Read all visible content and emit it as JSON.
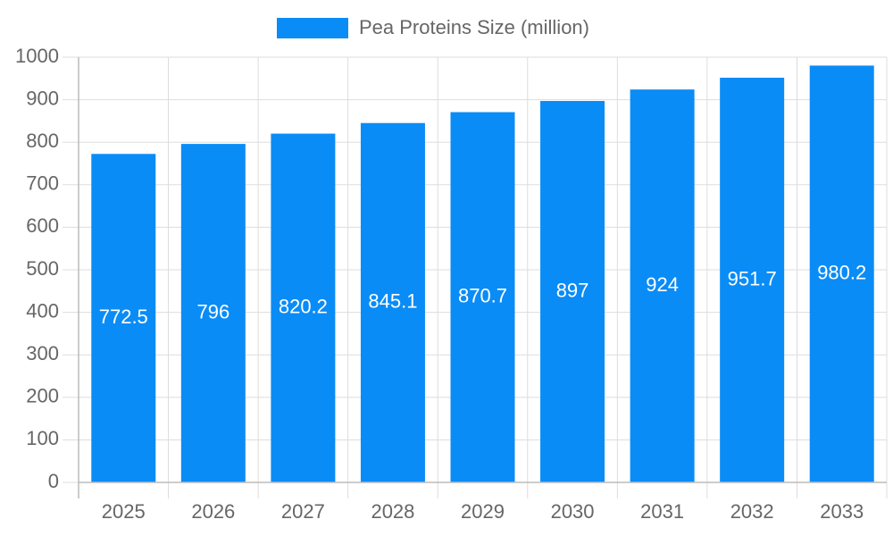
{
  "chart_data": {
    "type": "bar",
    "categories": [
      "2025",
      "2026",
      "2027",
      "2028",
      "2029",
      "2030",
      "2031",
      "2032",
      "2033"
    ],
    "series": [
      {
        "name": "Pea Proteins Size (million)",
        "color": "#0a8cf7",
        "values": [
          772.5,
          796,
          820.2,
          845.1,
          870.7,
          897,
          924,
          951.7,
          980.2
        ]
      }
    ],
    "ylim": [
      0,
      1000
    ],
    "yticks": [
      0,
      100,
      200,
      300,
      400,
      500,
      600,
      700,
      800,
      900,
      1000
    ],
    "grid": true,
    "legend": "top"
  }
}
